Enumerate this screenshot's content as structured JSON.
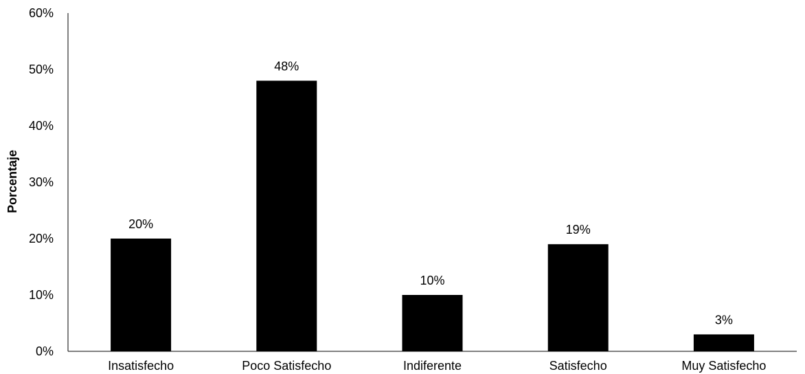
{
  "chart_data": {
    "type": "bar",
    "title": "",
    "xlabel": "",
    "ylabel": "Porcentaje",
    "categories": [
      "Insatisfecho",
      "Poco Satisfecho",
      "Indiferente",
      "Satisfecho",
      "Muy Satisfecho"
    ],
    "values": [
      20,
      48,
      10,
      19,
      3
    ],
    "data_labels": [
      "20%",
      "48%",
      "10%",
      "19%",
      "3%"
    ],
    "ylim": [
      0,
      60
    ],
    "y_ticks": [
      0,
      10,
      20,
      30,
      40,
      50,
      60
    ],
    "y_tick_labels": [
      "0%",
      "10%",
      "20%",
      "30%",
      "40%",
      "50%",
      "60%"
    ],
    "grid": false,
    "legend": "none",
    "bar_color": "#000000"
  }
}
